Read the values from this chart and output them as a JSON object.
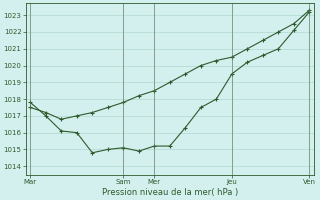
{
  "bg_color": "#d4f0ee",
  "grid_color": "#b0d8d0",
  "line_color": "#2d5a2d",
  "marker_color": "#2d5a2d",
  "xlabel": "Pression niveau de la mer( hPa )",
  "ylim": [
    1013.5,
    1023.7
  ],
  "yticks": [
    1014,
    1015,
    1016,
    1017,
    1018,
    1019,
    1020,
    1021,
    1022,
    1023
  ],
  "xtick_labels": [
    "Mar",
    "Sam",
    "Mer",
    "Jeu",
    "Ven"
  ],
  "xtick_positions": [
    0,
    6,
    8,
    13,
    18
  ],
  "vlines": [
    0,
    6,
    8,
    13,
    18
  ],
  "series1": {
    "x": [
      0,
      1,
      2,
      3,
      4,
      5,
      6,
      7,
      8,
      9,
      10,
      11,
      12,
      13,
      14,
      15,
      16,
      17,
      18
    ],
    "y": [
      1017.8,
      1017.0,
      1016.1,
      1016.0,
      1014.8,
      1015.0,
      1015.1,
      1014.9,
      1015.2,
      1015.2,
      1016.3,
      1017.5,
      1018.0,
      1019.5,
      1020.2,
      1020.6,
      1021.0,
      1022.1,
      1023.2
    ]
  },
  "series2": {
    "x": [
      0,
      1,
      2,
      3,
      4,
      5,
      6,
      7,
      8,
      9,
      10,
      11,
      12,
      13,
      14,
      15,
      16,
      17,
      18
    ],
    "y": [
      1017.5,
      1017.2,
      1016.8,
      1017.0,
      1017.2,
      1017.5,
      1017.8,
      1018.2,
      1018.5,
      1019.0,
      1019.5,
      1020.0,
      1020.3,
      1020.5,
      1021.0,
      1021.5,
      1022.0,
      1022.5,
      1023.3
    ]
  }
}
